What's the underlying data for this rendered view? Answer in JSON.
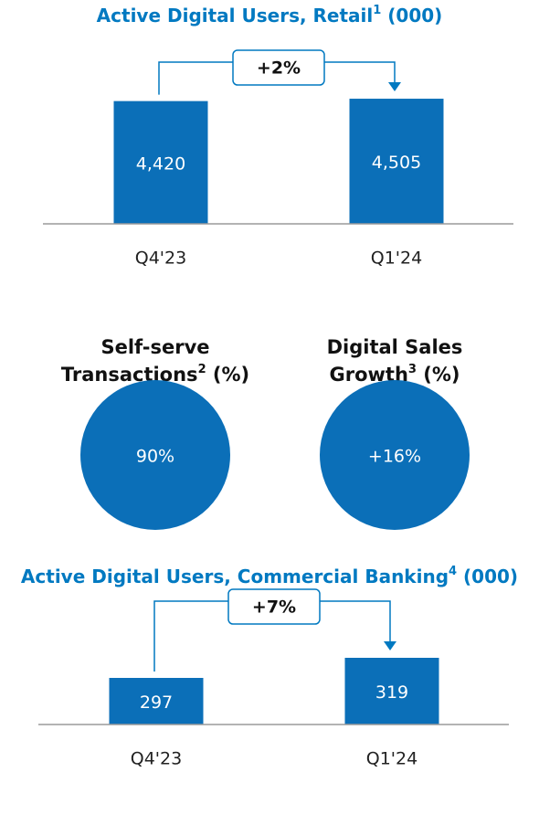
{
  "chart_data": [
    {
      "type": "bar",
      "title": "Active Digital Users, Retail",
      "title_note": "1",
      "title_suffix": " (000)",
      "categories": [
        "Q4'23",
        "Q1'24"
      ],
      "values": [
        4420,
        4505
      ],
      "value_labels": [
        "4,420",
        "4,505"
      ],
      "color": "#0b6fb8",
      "ylim": [
        0,
        5000
      ],
      "annotation": "+2%"
    },
    {
      "type": "bar",
      "title": "Active Digital Users, Commercial Banking",
      "title_note": "4",
      "title_suffix": " (000)",
      "categories": [
        "Q4'23",
        "Q1'24"
      ],
      "values": [
        297,
        319
      ],
      "value_labels": [
        "297",
        "319"
      ],
      "color": "#0b6fb8",
      "ylim": [
        246,
        400
      ],
      "annotation": "+7%"
    }
  ],
  "metrics": [
    {
      "title_lines": [
        "Self-serve",
        "Transactions"
      ],
      "note": "2",
      "suffix": " (%)",
      "value_label": "90%",
      "color": "#0b6fb8"
    },
    {
      "title_lines": [
        "Digital Sales",
        "Growth"
      ],
      "note": "3",
      "suffix": " (%)",
      "value_label": "+16%",
      "color": "#0b6fb8"
    }
  ]
}
